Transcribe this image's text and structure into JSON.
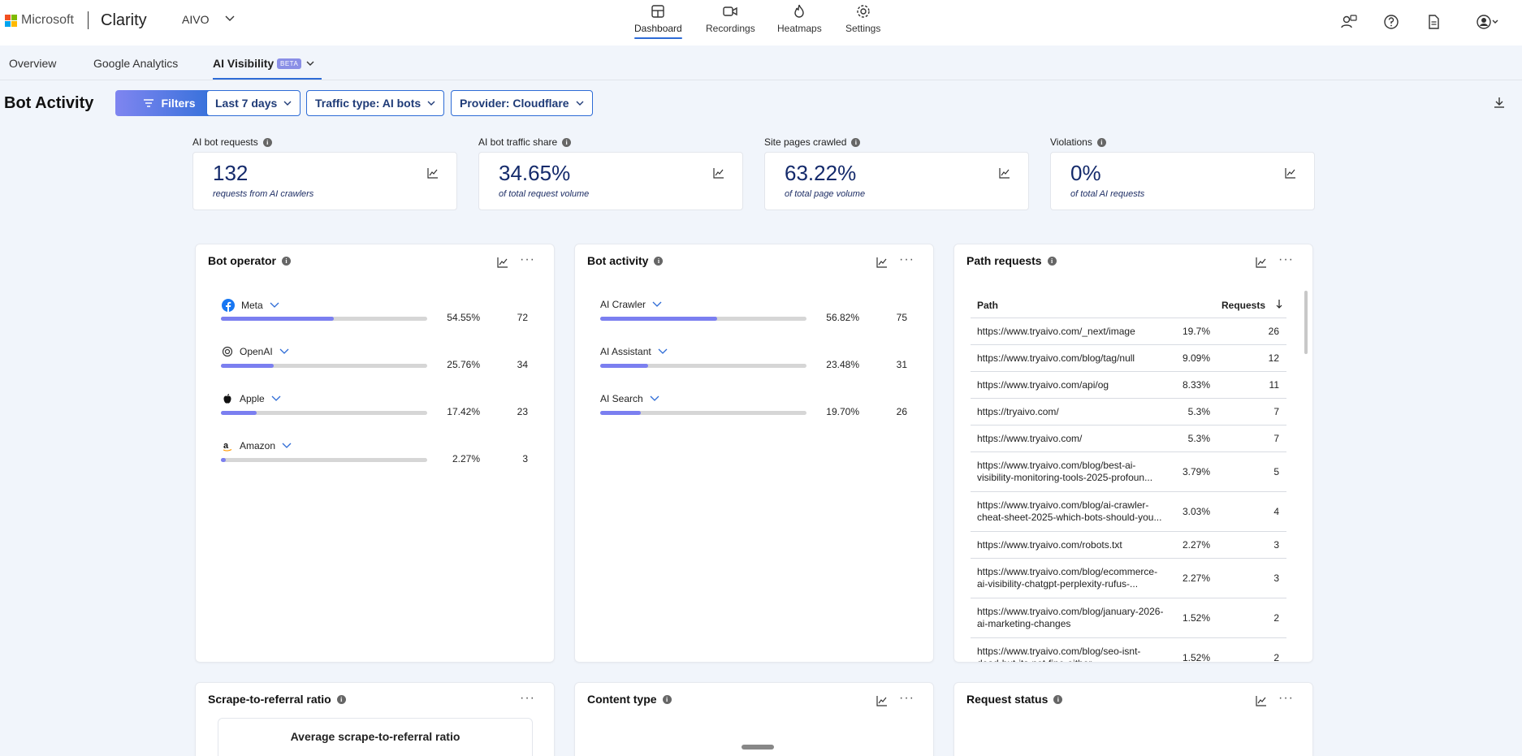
{
  "header": {
    "brand": "Microsoft",
    "app": "Clarity",
    "project": "AIVO",
    "nav": [
      {
        "label": "Dashboard",
        "icon": "dashboard-icon"
      },
      {
        "label": "Recordings",
        "icon": "video-icon"
      },
      {
        "label": "Heatmaps",
        "icon": "flame-icon"
      },
      {
        "label": "Settings",
        "icon": "gear-icon"
      }
    ],
    "right_icons": [
      "share-user-icon",
      "help-icon",
      "document-icon",
      "account-icon"
    ]
  },
  "tabs": {
    "items": [
      "Overview",
      "Google Analytics",
      "AI Visibility"
    ],
    "active": "AI Visibility",
    "badge": "BETA"
  },
  "toolbar": {
    "title": "Bot Activity",
    "filters_label": "Filters",
    "date": "Last 7 days",
    "traffic_type": "Traffic type: AI bots",
    "provider": "Provider: Cloudflare"
  },
  "kpis": [
    {
      "label": "AI bot requests",
      "value": "132",
      "sub": "requests from AI crawlers"
    },
    {
      "label": "AI bot traffic share",
      "value": "34.65%",
      "sub": "of total request volume"
    },
    {
      "label": "Site pages crawled",
      "value": "63.22%",
      "sub": "of total page volume"
    },
    {
      "label": "Violations",
      "value": "0%",
      "sub": "of total AI requests"
    }
  ],
  "bot_operator": {
    "title": "Bot operator",
    "items": [
      {
        "name": "Meta",
        "pct": "54.55%",
        "fraction": 0.5455,
        "count": "72",
        "icon": "facebook-icon"
      },
      {
        "name": "OpenAI",
        "pct": "25.76%",
        "fraction": 0.2576,
        "count": "34",
        "icon": "openai-icon"
      },
      {
        "name": "Apple",
        "pct": "17.42%",
        "fraction": 0.1742,
        "count": "23",
        "icon": "apple-icon"
      },
      {
        "name": "Amazon",
        "pct": "2.27%",
        "fraction": 0.0227,
        "count": "3",
        "icon": "amazon-icon"
      }
    ]
  },
  "bot_activity": {
    "title": "Bot activity",
    "items": [
      {
        "name": "AI Crawler",
        "pct": "56.82%",
        "fraction": 0.5682,
        "count": "75"
      },
      {
        "name": "AI Assistant",
        "pct": "23.48%",
        "fraction": 0.2348,
        "count": "31"
      },
      {
        "name": "AI Search",
        "pct": "19.70%",
        "fraction": 0.197,
        "count": "26"
      }
    ]
  },
  "path_requests": {
    "title": "Path requests",
    "col_path": "Path",
    "col_requests": "Requests",
    "rows": [
      {
        "path": "https://www.tryaivo.com/_next/image",
        "pct": "19.7%",
        "count": "26"
      },
      {
        "path": "https://www.tryaivo.com/blog/tag/null",
        "pct": "9.09%",
        "count": "12"
      },
      {
        "path": "https://www.tryaivo.com/api/og",
        "pct": "8.33%",
        "count": "11"
      },
      {
        "path": "https://tryaivo.com/",
        "pct": "5.3%",
        "count": "7"
      },
      {
        "path": "https://www.tryaivo.com/",
        "pct": "5.3%",
        "count": "7"
      },
      {
        "path": "https://www.tryaivo.com/blog/best-ai-visibility-monitoring-tools-2025-profoun...",
        "pct": "3.79%",
        "count": "5"
      },
      {
        "path": "https://www.tryaivo.com/blog/ai-crawler-cheat-sheet-2025-which-bots-should-you...",
        "pct": "3.03%",
        "count": "4"
      },
      {
        "path": "https://www.tryaivo.com/robots.txt",
        "pct": "2.27%",
        "count": "3"
      },
      {
        "path": "https://www.tryaivo.com/blog/ecommerce-ai-visibility-chatgpt-perplexity-rufus-...",
        "pct": "2.27%",
        "count": "3"
      },
      {
        "path": "https://www.tryaivo.com/blog/january-2026-ai-marketing-changes",
        "pct": "1.52%",
        "count": "2"
      },
      {
        "path": "https://www.tryaivo.com/blog/seo-isnt-dead-but-its-not-fine-either",
        "pct": "1.52%",
        "count": "2"
      }
    ]
  },
  "bottom_panels": {
    "scrape": {
      "title": "Scrape-to-referral ratio",
      "avg_title": "Average scrape-to-referral ratio"
    },
    "content": {
      "title": "Content type"
    },
    "status": {
      "title": "Request status"
    }
  }
}
